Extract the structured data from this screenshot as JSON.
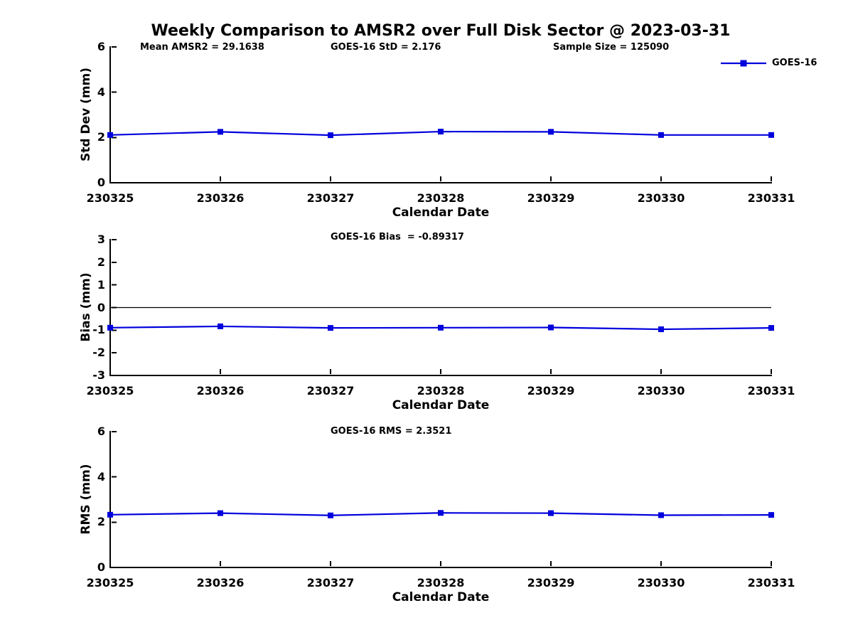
{
  "title": "Weekly Comparison to AMSR2 over Full Disk Sector @ 2023-03-31",
  "xlabel": "Calendar Date",
  "legend": {
    "label": "GOES-16"
  },
  "colors": {
    "series": "#0000dd",
    "axis": "#000000",
    "zero_line": "#000000"
  },
  "chart_data": [
    {
      "type": "line",
      "name": "std-dev-panel",
      "ylabel": "Std Dev (mm)",
      "xlabel": "Calendar Date",
      "ylim": [
        0,
        6
      ],
      "yticks": [
        0,
        2,
        4,
        6
      ],
      "annotations": [
        "Mean AMSR2 = 29.1638",
        "GOES-16 StD = 2.176",
        "Sample Size = 125090"
      ],
      "categories": [
        "230325",
        "230326",
        "230327",
        "230328",
        "230329",
        "230330",
        "230331"
      ],
      "series": [
        {
          "name": "GOES-16",
          "values": [
            2.11,
            2.25,
            2.1,
            2.26,
            2.25,
            2.11,
            2.11
          ]
        }
      ],
      "zero_line": false,
      "legend_position": "upper right",
      "grid": false
    },
    {
      "type": "line",
      "name": "bias-panel",
      "ylabel": "Bias (mm)",
      "xlabel": "Calendar Date",
      "ylim": [
        -3,
        3
      ],
      "yticks": [
        -3,
        -2,
        -1,
        0,
        1,
        2,
        3
      ],
      "annotations": [
        "GOES-16 Bias  = -0.89317"
      ],
      "categories": [
        "230325",
        "230326",
        "230327",
        "230328",
        "230329",
        "230330",
        "230331"
      ],
      "series": [
        {
          "name": "GOES-16",
          "values": [
            -0.89,
            -0.83,
            -0.9,
            -0.89,
            -0.88,
            -0.96,
            -0.9
          ]
        }
      ],
      "zero_line": true,
      "grid": false
    },
    {
      "type": "line",
      "name": "rms-panel",
      "ylabel": "RMS (mm)",
      "xlabel": "Calendar Date",
      "ylim": [
        0,
        6
      ],
      "yticks": [
        0,
        2,
        4,
        6
      ],
      "annotations": [
        "GOES-16 RMS = 2.3521"
      ],
      "categories": [
        "230325",
        "230326",
        "230327",
        "230328",
        "230329",
        "230330",
        "230331"
      ],
      "series": [
        {
          "name": "GOES-16",
          "values": [
            2.33,
            2.4,
            2.3,
            2.41,
            2.4,
            2.31,
            2.32
          ]
        }
      ],
      "zero_line": false,
      "grid": false
    }
  ]
}
